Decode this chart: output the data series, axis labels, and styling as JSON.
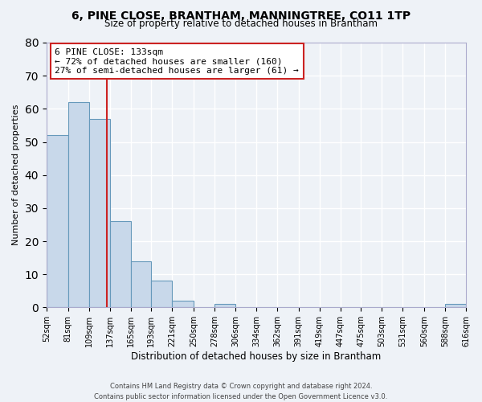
{
  "title": "6, PINE CLOSE, BRANTHAM, MANNINGTREE, CO11 1TP",
  "subtitle": "Size of property relative to detached houses in Brantham",
  "xlabel": "Distribution of detached houses by size in Brantham",
  "ylabel": "Number of detached properties",
  "bar_color": "#c8d8ea",
  "bar_edge_color": "#6699bb",
  "background_color": "#eef2f7",
  "grid_color": "#ffffff",
  "annotation_box_color": "#cc2222",
  "vline_color": "#cc2222",
  "annotation_line1": "6 PINE CLOSE: 133sqm",
  "annotation_line2": "← 72% of detached houses are smaller (160)",
  "annotation_line3": "27% of semi-detached houses are larger (61) →",
  "property_size": 133,
  "bin_edges": [
    52,
    81,
    109,
    137,
    165,
    193,
    221,
    250,
    278,
    306,
    334,
    362,
    391,
    419,
    447,
    475,
    503,
    531,
    560,
    588,
    616
  ],
  "bin_labels": [
    "52sqm",
    "81sqm",
    "109sqm",
    "137sqm",
    "165sqm",
    "193sqm",
    "221sqm",
    "250sqm",
    "278sqm",
    "306sqm",
    "334sqm",
    "362sqm",
    "391sqm",
    "419sqm",
    "447sqm",
    "475sqm",
    "503sqm",
    "531sqm",
    "560sqm",
    "588sqm",
    "616sqm"
  ],
  "counts": [
    52,
    62,
    57,
    26,
    14,
    8,
    2,
    0,
    1,
    0,
    0,
    0,
    0,
    0,
    0,
    0,
    0,
    0,
    0,
    1
  ],
  "ylim": [
    0,
    80
  ],
  "yticks": [
    0,
    10,
    20,
    30,
    40,
    50,
    60,
    70,
    80
  ],
  "footer_line1": "Contains HM Land Registry data © Crown copyright and database right 2024.",
  "footer_line2": "Contains public sector information licensed under the Open Government Licence v3.0."
}
